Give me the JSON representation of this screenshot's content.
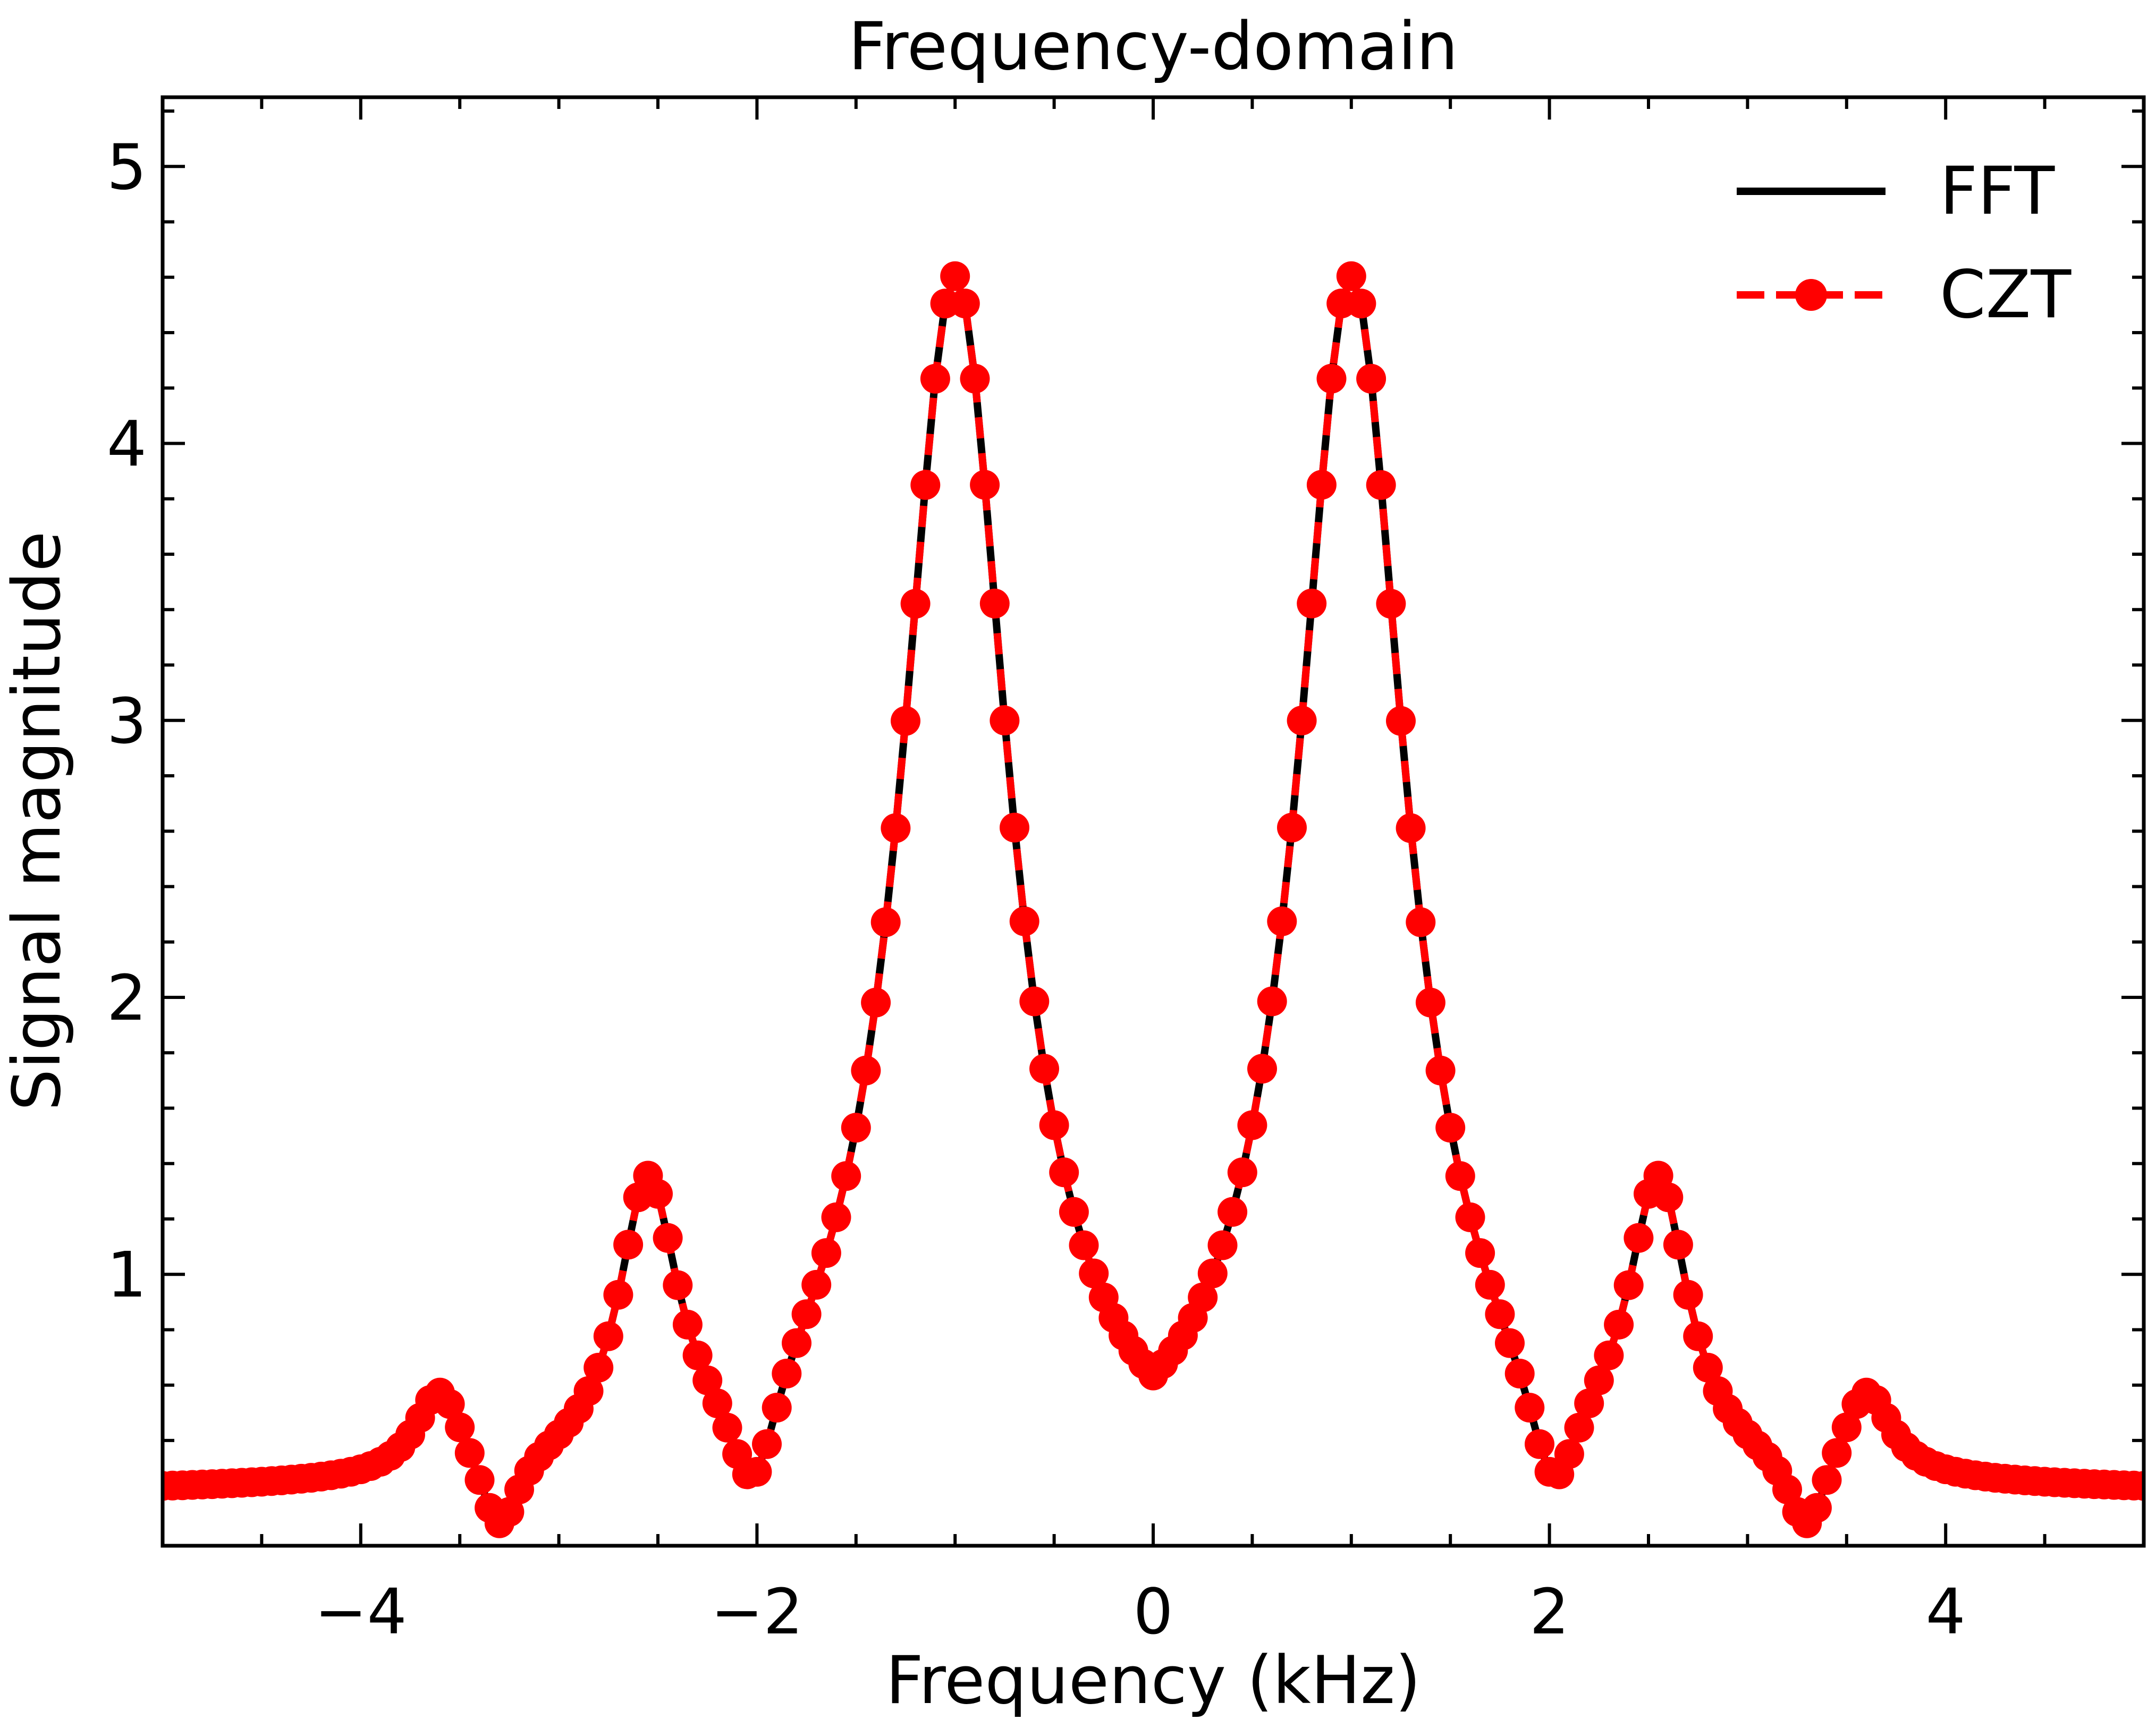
{
  "chart_data": {
    "type": "line",
    "title": "Frequency-domain",
    "xlabel": "Frequency (kHz)",
    "ylabel": "Signal magnitude",
    "xlim": [
      -5.0,
      5.0
    ],
    "ylim": [
      0.02,
      5.25
    ],
    "x_ticks": [
      -4,
      -2,
      0,
      2,
      4
    ],
    "x_tick_labels": [
      "−4",
      "−2",
      "0",
      "2",
      "4"
    ],
    "x_minor_step": 0.5,
    "y_ticks": [
      1,
      2,
      3,
      4,
      5
    ],
    "y_tick_labels": [
      "1",
      "2",
      "3",
      "4",
      "5"
    ],
    "y_minor_step": 0.2,
    "grid": false,
    "legend_position": "top-right",
    "x_range": {
      "start": -5.0,
      "end": 5.0,
      "count": 201
    },
    "series": [
      {
        "name": "FFT",
        "style": "solid",
        "color": "#000000",
        "markers": false
      },
      {
        "name": "CZT",
        "style": "dashed",
        "color": "#ff0000",
        "markers": true
      }
    ],
    "curve_shape": {
      "baseline": 0.2,
      "peaks": [
        {
          "center": 1.0,
          "amplitude": 4.4,
          "width": 0.33
        },
        {
          "center": 2.55,
          "amplitude": 1.0,
          "width": 0.18
        },
        {
          "center": 3.6,
          "amplitude": 0.32,
          "width": 0.15
        }
      ],
      "dips": [
        {
          "center": 2.02,
          "depth": 0.45,
          "width": 0.15
        },
        {
          "center": 3.3,
          "depth": 0.3,
          "width": 0.12
        }
      ]
    }
  }
}
